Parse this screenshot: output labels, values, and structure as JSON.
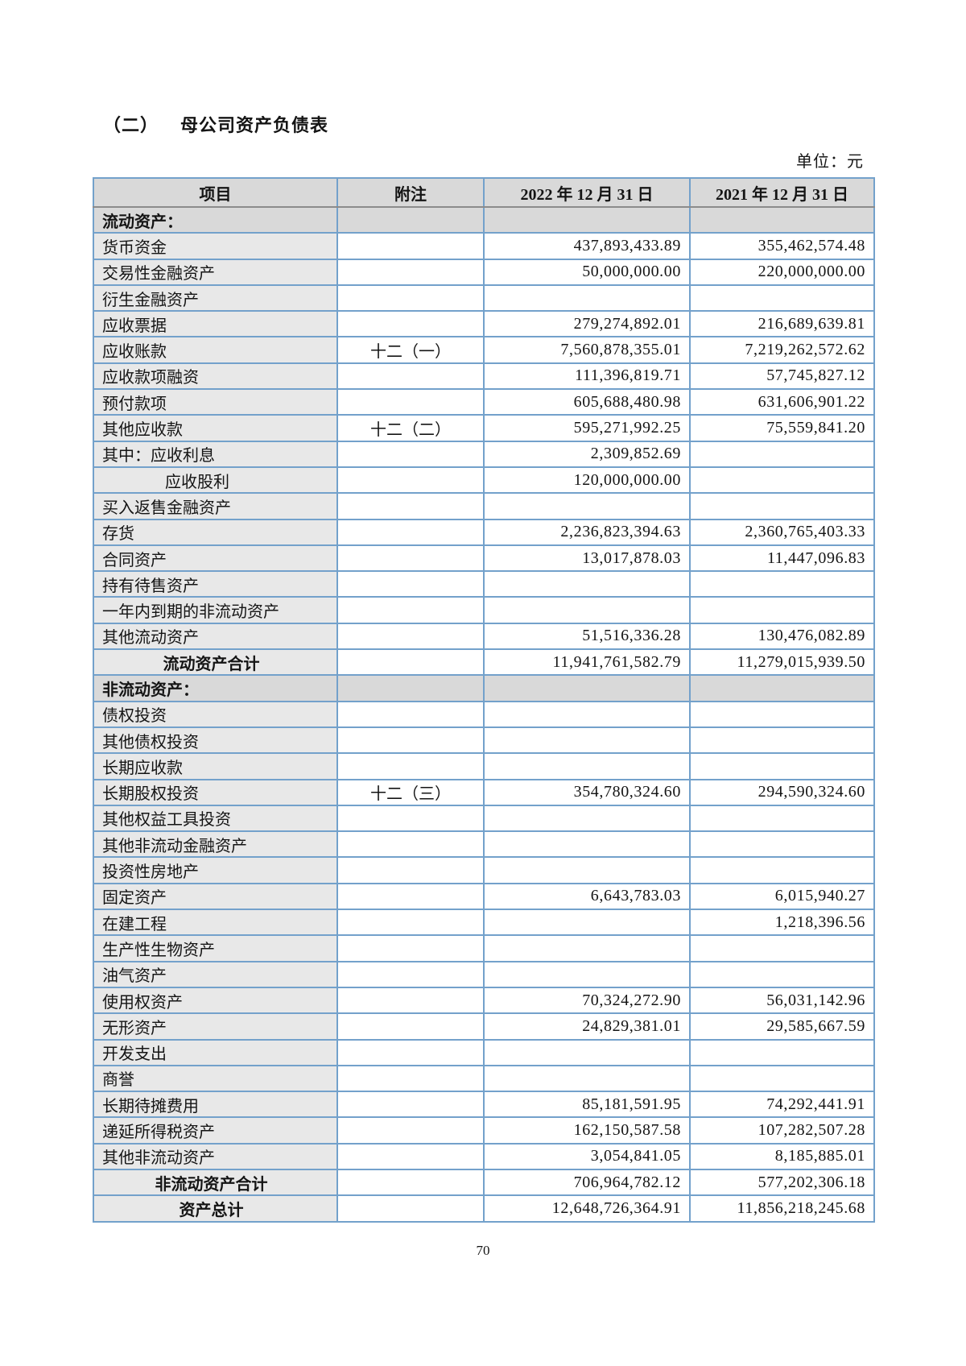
{
  "heading": {
    "prefix": "（二）",
    "text": "母公司资产负债表"
  },
  "table": {
    "unit": "单位：元",
    "headers": [
      "项目",
      "附注",
      "2022 年 12 月 31 日",
      "2021 年 12 月 31 日"
    ],
    "rows": [
      {
        "type": "section",
        "label": "流动资产：",
        "note": "",
        "v2022": "",
        "v2021": ""
      },
      {
        "type": "item",
        "label": "货币资金",
        "note": "",
        "v2022": "437,893,433.89",
        "v2021": "355,462,574.48"
      },
      {
        "type": "item",
        "label": "交易性金融资产",
        "note": "",
        "v2022": "50,000,000.00",
        "v2021": "220,000,000.00"
      },
      {
        "type": "item",
        "label": "衍生金融资产",
        "note": "",
        "v2022": "",
        "v2021": ""
      },
      {
        "type": "item",
        "label": "应收票据",
        "note": "",
        "v2022": "279,274,892.01",
        "v2021": "216,689,639.81"
      },
      {
        "type": "item",
        "label": "应收账款",
        "note": "十二（一）",
        "v2022": "7,560,878,355.01",
        "v2021": "7,219,262,572.62"
      },
      {
        "type": "item",
        "label": "应收款项融资",
        "note": "",
        "v2022": "111,396,819.71",
        "v2021": "57,745,827.12"
      },
      {
        "type": "item",
        "label": "预付款项",
        "note": "",
        "v2022": "605,688,480.98",
        "v2021": "631,606,901.22"
      },
      {
        "type": "item",
        "label": "其他应收款",
        "note": "十二（二）",
        "v2022": "595,271,992.25",
        "v2021": "75,559,841.20"
      },
      {
        "type": "item",
        "label": "其中：应收利息",
        "note": "",
        "v2022": "2,309,852.69",
        "v2021": ""
      },
      {
        "type": "item",
        "indent": true,
        "label": "应收股利",
        "note": "",
        "v2022": "120,000,000.00",
        "v2021": ""
      },
      {
        "type": "item",
        "label": "买入返售金融资产",
        "note": "",
        "v2022": "",
        "v2021": ""
      },
      {
        "type": "item",
        "label": "存货",
        "note": "",
        "v2022": "2,236,823,394.63",
        "v2021": "2,360,765,403.33"
      },
      {
        "type": "item",
        "label": "合同资产",
        "note": "",
        "v2022": "13,017,878.03",
        "v2021": "11,447,096.83"
      },
      {
        "type": "item",
        "label": "持有待售资产",
        "note": "",
        "v2022": "",
        "v2021": ""
      },
      {
        "type": "item",
        "label": "一年内到期的非流动资产",
        "note": "",
        "v2022": "",
        "v2021": ""
      },
      {
        "type": "item",
        "label": "其他流动资产",
        "note": "",
        "v2022": "51,516,336.28",
        "v2021": "130,476,082.89"
      },
      {
        "type": "total",
        "label": "流动资产合计",
        "note": "",
        "v2022": "11,941,761,582.79",
        "v2021": "11,279,015,939.50"
      },
      {
        "type": "section",
        "label": "非流动资产：",
        "note": "",
        "v2022": "",
        "v2021": ""
      },
      {
        "type": "item",
        "label": "债权投资",
        "note": "",
        "v2022": "",
        "v2021": ""
      },
      {
        "type": "item",
        "label": "其他债权投资",
        "note": "",
        "v2022": "",
        "v2021": ""
      },
      {
        "type": "item",
        "label": "长期应收款",
        "note": "",
        "v2022": "",
        "v2021": ""
      },
      {
        "type": "item",
        "label": "长期股权投资",
        "note": "十二（三）",
        "v2022": "354,780,324.60",
        "v2021": "294,590,324.60"
      },
      {
        "type": "item",
        "label": "其他权益工具投资",
        "note": "",
        "v2022": "",
        "v2021": ""
      },
      {
        "type": "item",
        "label": "其他非流动金融资产",
        "note": "",
        "v2022": "",
        "v2021": ""
      },
      {
        "type": "item",
        "label": "投资性房地产",
        "note": "",
        "v2022": "",
        "v2021": ""
      },
      {
        "type": "item",
        "label": "固定资产",
        "note": "",
        "v2022": "6,643,783.03",
        "v2021": "6,015,940.27"
      },
      {
        "type": "item",
        "label": "在建工程",
        "note": "",
        "v2022": "",
        "v2021": "1,218,396.56"
      },
      {
        "type": "item",
        "label": "生产性生物资产",
        "note": "",
        "v2022": "",
        "v2021": ""
      },
      {
        "type": "item",
        "label": "油气资产",
        "note": "",
        "v2022": "",
        "v2021": ""
      },
      {
        "type": "item",
        "label": "使用权资产",
        "note": "",
        "v2022": "70,324,272.90",
        "v2021": "56,031,142.96"
      },
      {
        "type": "item",
        "label": "无形资产",
        "note": "",
        "v2022": "24,829,381.01",
        "v2021": "29,585,667.59"
      },
      {
        "type": "item",
        "label": "开发支出",
        "note": "",
        "v2022": "",
        "v2021": ""
      },
      {
        "type": "item",
        "label": "商誉",
        "note": "",
        "v2022": "",
        "v2021": ""
      },
      {
        "type": "item",
        "label": "长期待摊费用",
        "note": "",
        "v2022": "85,181,591.95",
        "v2021": "74,292,441.91"
      },
      {
        "type": "item",
        "label": "递延所得税资产",
        "note": "",
        "v2022": "162,150,587.58",
        "v2021": "107,282,507.28"
      },
      {
        "type": "item",
        "label": "其他非流动资产",
        "note": "",
        "v2022": "3,054,841.05",
        "v2021": "8,185,885.01"
      },
      {
        "type": "total",
        "label": "非流动资产合计",
        "note": "",
        "v2022": "706,964,782.12",
        "v2021": "577,202,306.18"
      },
      {
        "type": "total",
        "label": "资产总计",
        "note": "",
        "v2022": "12,648,726,364.91",
        "v2021": "11,856,218,245.68"
      }
    ]
  },
  "footer": {
    "page_number": "70"
  },
  "colors": {
    "border_blue": "#73a1cb",
    "header_bg": "#d9d9d9",
    "label_col_bg": "#e8e8e8"
  }
}
